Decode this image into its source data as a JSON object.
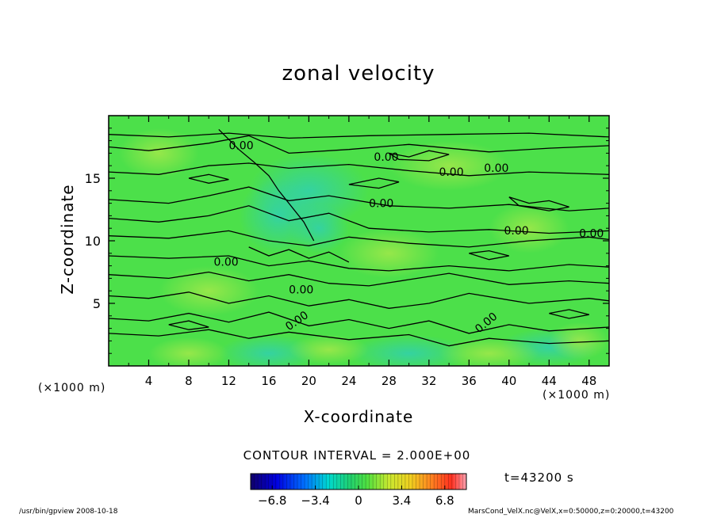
{
  "chart_data": {
    "type": "heatmap",
    "title": "zonal velocity",
    "xlabel": "X-coordinate",
    "ylabel": "Z-coordinate",
    "x_unit": "(×1000 m)",
    "x_ticks": [
      4,
      8,
      12,
      16,
      20,
      24,
      28,
      32,
      36,
      40,
      44,
      48
    ],
    "y_ticks": [
      5,
      10,
      15
    ],
    "xlim": [
      0,
      50
    ],
    "ylim": [
      0,
      20
    ],
    "contour_interval_label": "CONTOUR INTERVAL = 2.000E+00",
    "contour_labels": [
      "0.00",
      "0.00",
      "0.00",
      "0.00",
      "0.00",
      "0.00",
      "0.00",
      "0.00",
      "0.00",
      "0.00",
      "0.00"
    ],
    "colorbar": {
      "ticks": [
        "−6.8",
        "−3.4",
        "0",
        "3.4",
        "6.8"
      ],
      "range": [
        -8.5,
        8.5
      ]
    },
    "time_label": "t=43200 s"
  },
  "footer": {
    "left": "/usr/bin/gpview   2008-10-18",
    "right": "MarsCond_VelX.nc@VelX,x=0:50000,z=0:20000,t=43200"
  },
  "colors": {
    "field": "#4ce04a",
    "field_light": "#7fe84a",
    "field_cyan": "#3ad6a0"
  }
}
